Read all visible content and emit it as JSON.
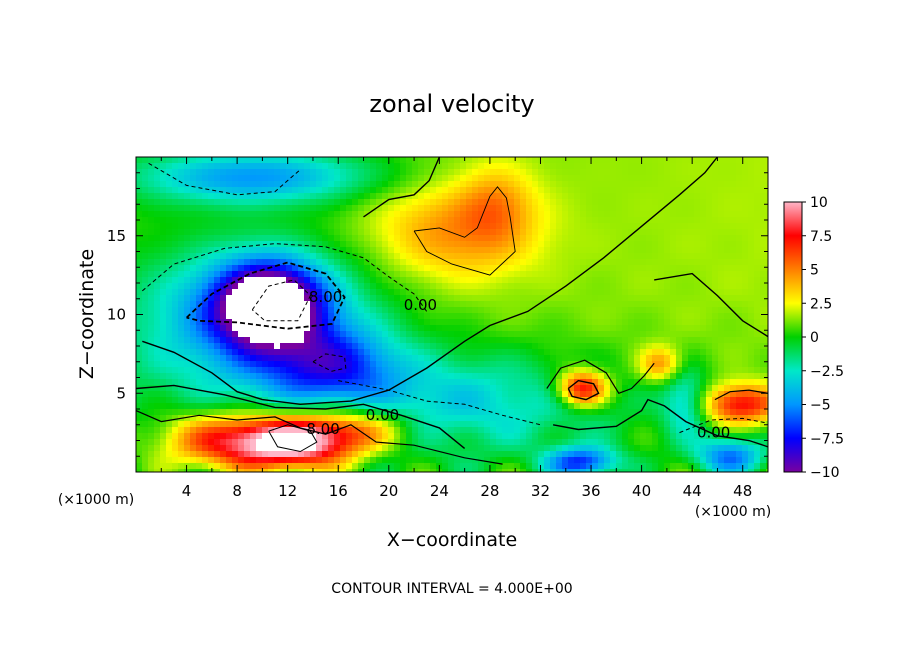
{
  "chart_data": {
    "type": "heatmap",
    "title": "zonal velocity",
    "xlabel": "X−coordinate",
    "ylabel": "Z−coordinate",
    "x_unit": "(×1000 m)",
    "y_unit": "(×1000 m)",
    "footer": "CONTOUR INTERVAL = 4.000E+00",
    "xlim": [
      0,
      50
    ],
    "ylim": [
      0,
      20
    ],
    "x_ticks": [
      4,
      8,
      12,
      16,
      20,
      24,
      28,
      32,
      36,
      40,
      44,
      48
    ],
    "y_ticks": [
      5,
      10,
      15
    ],
    "colorbar": {
      "range": [
        -10,
        10
      ],
      "tick_values": [
        10,
        7.5,
        5,
        2.5,
        0,
        -2.5,
        -5,
        -7.5,
        -10
      ],
      "tick_labels": [
        "10",
        "7.5",
        "5",
        "2.5",
        "0",
        "−2.5",
        "−5",
        "−7.5",
        "−10"
      ],
      "colors": [
        "#ffb6c8",
        "#ff0000",
        "#ff7f00",
        "#ffff00",
        "#00d000",
        "#00e8c8",
        "#0096ff",
        "#0000ff",
        "#7800a0"
      ]
    },
    "contour_labels": [
      {
        "text": "8.00",
        "x": 15,
        "y": 10.8
      },
      {
        "text": "0.00",
        "x": 22.5,
        "y": 10.3
      },
      {
        "text": "0.00",
        "x": 19.5,
        "y": 3.3
      },
      {
        "text": "8.00",
        "x": 14.8,
        "y": 2.4
      },
      {
        "text": "0.00",
        "x": 45.7,
        "y": 2.2
      }
    ],
    "field_features": [
      {
        "value": -12,
        "x": 10.5,
        "y": 10.6,
        "sx": 2.8,
        "sy": 1.8
      },
      {
        "value": -6,
        "x": 9.5,
        "y": 9.8,
        "sx": 6.5,
        "sy": 3.2
      },
      {
        "value": -5,
        "x": 15.5,
        "y": 6.8,
        "sx": 3.5,
        "sy": 1.6
      },
      {
        "value": -3.5,
        "x": 25,
        "y": 4.5,
        "sx": 9,
        "sy": 2.2
      },
      {
        "value": 10,
        "x": 12.5,
        "y": 1.8,
        "sx": 3.5,
        "sy": 1.1
      },
      {
        "value": 6,
        "x": 7,
        "y": 2.0,
        "sx": 4,
        "sy": 1.3
      },
      {
        "value": 5,
        "x": 17,
        "y": 2.8,
        "sx": 3.5,
        "sy": 1.0
      },
      {
        "value": 3.5,
        "x": 25,
        "y": 15.2,
        "sx": 4.5,
        "sy": 2.2
      },
      {
        "value": 2.5,
        "x": 28.5,
        "y": 17.0,
        "sx": 2.0,
        "sy": 1.8
      },
      {
        "value": 8,
        "x": 35.3,
        "y": 5.3,
        "sx": 1.4,
        "sy": 0.8
      },
      {
        "value": -7,
        "x": 35.3,
        "y": 0.6,
        "sx": 2.0,
        "sy": 0.7
      },
      {
        "value": 7,
        "x": 47.8,
        "y": 4.3,
        "sx": 2.2,
        "sy": 0.9
      },
      {
        "value": 4,
        "x": 41.5,
        "y": 6.8,
        "sx": 1.2,
        "sy": 0.8
      },
      {
        "value": -4,
        "x": 43.5,
        "y": 4.5,
        "sx": 1.3,
        "sy": 1.5
      },
      {
        "value": -6,
        "x": 47,
        "y": 1.0,
        "sx": 2.0,
        "sy": 0.9
      },
      {
        "value": -3,
        "x": 9,
        "y": 18.5,
        "sx": 6,
        "sy": 1.2
      }
    ]
  }
}
